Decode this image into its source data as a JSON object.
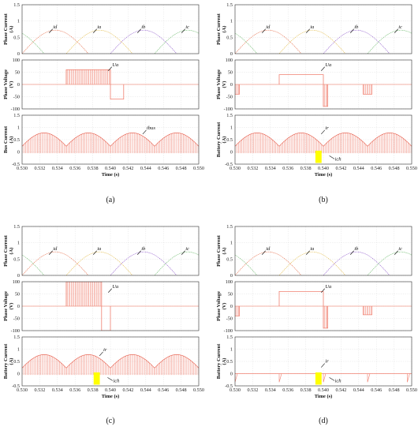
{
  "chart_data": [
    {
      "type": "line",
      "caption": "(a)",
      "xlabel": "Time (s)",
      "xlim": [
        0.53,
        0.55
      ],
      "xticks": [
        "0.530",
        "0.532",
        "0.534",
        "0.536",
        "0.538",
        "0.540",
        "0.542",
        "0.544",
        "0.546",
        "0.548",
        "0.550"
      ],
      "panels": [
        {
          "ylabel": "Phase Current",
          "yunit": "(A)",
          "ylim": [
            0,
            1.5
          ],
          "yticks": [
            "0",
            "0.5",
            "1",
            "1.5"
          ],
          "series": [
            {
              "name": "id",
              "color": "#e87a5a",
              "phase_start": 0.53,
              "period": 0.0075,
              "peak": 0.72
            },
            {
              "name": "ia",
              "color": "#e6c25a",
              "phase_start": 0.535,
              "period": 0.0075,
              "peak": 0.72
            },
            {
              "name": "ib",
              "color": "#9a6ad0",
              "phase_start": 0.54,
              "period": 0.0075,
              "peak": 0.72
            },
            {
              "name": "ic",
              "color": "#7ac07a",
              "phase_start": 0.545,
              "period": 0.0075,
              "peak": 0.72
            }
          ],
          "annotations": [
            {
              "text": "id",
              "x": 0.5335,
              "y": 0.78
            },
            {
              "text": "ia",
              "x": 0.5385,
              "y": 0.78
            },
            {
              "text": "ib",
              "x": 0.5435,
              "y": 0.78
            },
            {
              "text": "ic",
              "x": 0.5485,
              "y": 0.78
            }
          ]
        },
        {
          "ylabel": "Phase Voltage",
          "yunit": "(V)",
          "ylim": [
            -100,
            100
          ],
          "yticks": [
            "-100",
            "-50",
            "0",
            "50",
            "100"
          ],
          "segments": [
            {
              "x0": 0.535,
              "x1": 0.54,
              "level": 60,
              "pwm": true
            },
            {
              "x0": 0.54,
              "x1": 0.5415,
              "level": -60,
              "pwm": false
            }
          ],
          "annotations": [
            {
              "text": "Ua",
              "x": 0.5402,
              "y": 75
            }
          ]
        },
        {
          "ylabel": "Bus Current",
          "yunit": "(A)",
          "ylim": [
            -0.5,
            1.5
          ],
          "yticks": [
            "-0.5",
            "0",
            "0.5",
            "1",
            "1.5"
          ],
          "arches": {
            "period": 0.005,
            "start": 0.53,
            "peak": 0.78,
            "chopped": true
          },
          "annotations": [
            {
              "text": "ibus",
              "x": 0.5441,
              "y": 0.92
            }
          ]
        }
      ]
    },
    {
      "type": "line",
      "caption": "(b)",
      "xlabel": "Time (s)",
      "xlim": [
        0.53,
        0.55
      ],
      "xticks": [
        "0.530",
        "0.532",
        "0.534",
        "0.536",
        "0.538",
        "0.540",
        "0.542",
        "0.544",
        "0.546",
        "0.548",
        "0.550"
      ],
      "panels": [
        {
          "ylabel": "Phase Current",
          "yunit": "(A)",
          "ylim": [
            0,
            1.5
          ],
          "yticks": [
            "0",
            "0.5",
            "1",
            "1.5"
          ],
          "series": [
            {
              "name": "id",
              "color": "#e87a5a",
              "phase_start": 0.53,
              "period": 0.0075,
              "peak": 0.72
            },
            {
              "name": "ia",
              "color": "#e6c25a",
              "phase_start": 0.535,
              "period": 0.0075,
              "peak": 0.72
            },
            {
              "name": "ib",
              "color": "#9a6ad0",
              "phase_start": 0.54,
              "period": 0.0075,
              "peak": 0.72
            },
            {
              "name": "ic",
              "color": "#7ac07a",
              "phase_start": 0.545,
              "period": 0.0075,
              "peak": 0.72
            }
          ],
          "annotations": [
            {
              "text": "id",
              "x": 0.5335,
              "y": 0.78
            },
            {
              "text": "ia",
              "x": 0.5385,
              "y": 0.78
            },
            {
              "text": "ib",
              "x": 0.5435,
              "y": 0.78
            },
            {
              "text": "ic",
              "x": 0.5485,
              "y": 0.78
            }
          ]
        },
        {
          "ylabel": "Phase Voltage",
          "yunit": "(V)",
          "ylim": [
            -100,
            100
          ],
          "yticks": [
            "-100",
            "-50",
            "0",
            "50",
            "100"
          ],
          "segments": [
            {
              "x0": 0.53,
              "x1": 0.5305,
              "level": -40,
              "pwm": true
            },
            {
              "x0": 0.535,
              "x1": 0.54,
              "level": 40,
              "pwm": false
            },
            {
              "x0": 0.54,
              "x1": 0.5405,
              "level": -90,
              "pwm": true
            },
            {
              "x0": 0.5445,
              "x1": 0.5455,
              "level": -40,
              "pwm": true
            }
          ],
          "annotations": [
            {
              "text": "Ua",
              "x": 0.5402,
              "y": 75
            }
          ]
        },
        {
          "ylabel": "Battery Current",
          "yunit": "(A)",
          "ylim": [
            -0.5,
            1.5
          ],
          "yticks": [
            "-0.5",
            "0",
            "0.5",
            "1",
            "1.5"
          ],
          "arches": {
            "period": 0.005,
            "start": 0.53,
            "peak": 0.78,
            "chopped": true
          },
          "highlight": {
            "x0": 0.5391,
            "x1": 0.5398,
            "y0": -0.45,
            "y1": 0.05,
            "color": "#ffff00"
          },
          "annotations": [
            {
              "text": "ir",
              "x": 0.5402,
              "y": 0.92
            },
            {
              "text": "ich",
              "x": 0.5413,
              "y": -0.35
            }
          ]
        }
      ]
    },
    {
      "type": "line",
      "caption": "(c)",
      "xlabel": "Time (s)",
      "xlim": [
        0.53,
        0.55
      ],
      "xticks": [
        "0.530",
        "0.532",
        "0.534",
        "0.536",
        "0.538",
        "0.540",
        "0.542",
        "0.544",
        "0.546",
        "0.548",
        "0.550"
      ],
      "panels": [
        {
          "ylabel": "Phase Current",
          "yunit": "(A)",
          "ylim": [
            0,
            1.5
          ],
          "yticks": [
            "0",
            "0.5",
            "1",
            "1.5"
          ],
          "series": [
            {
              "name": "id",
              "color": "#e87a5a",
              "phase_start": 0.53,
              "period": 0.0075,
              "peak": 0.72
            },
            {
              "name": "ia",
              "color": "#e6c25a",
              "phase_start": 0.535,
              "period": 0.0075,
              "peak": 0.72
            },
            {
              "name": "ib",
              "color": "#9a6ad0",
              "phase_start": 0.54,
              "period": 0.0075,
              "peak": 0.72
            },
            {
              "name": "ic",
              "color": "#7ac07a",
              "phase_start": 0.545,
              "period": 0.0075,
              "peak": 0.72
            }
          ],
          "annotations": [
            {
              "text": "id",
              "x": 0.5335,
              "y": 0.78
            },
            {
              "text": "ia",
              "x": 0.5385,
              "y": 0.78
            },
            {
              "text": "ib",
              "x": 0.5435,
              "y": 0.78
            },
            {
              "text": "ic",
              "x": 0.5485,
              "y": 0.78
            }
          ]
        },
        {
          "ylabel": "Phase Voltage",
          "yunit": "(V)",
          "ylim": [
            -100,
            100
          ],
          "yticks": [
            "-100",
            "-50",
            "0",
            "50",
            "100"
          ],
          "segments": [
            {
              "x0": 0.535,
              "x1": 0.539,
              "level": 100,
              "pwm": true
            },
            {
              "x0": 0.539,
              "x1": 0.54,
              "level": -100,
              "pwm": false
            }
          ],
          "annotations": [
            {
              "text": "Ua",
              "x": 0.5402,
              "y": 75
            }
          ]
        },
        {
          "ylabel": "Battery Current",
          "yunit": "(A)",
          "ylim": [
            -0.5,
            1.5
          ],
          "yticks": [
            "-0.5",
            "0",
            "0.5",
            "1",
            "1.5"
          ],
          "arches": {
            "period": 0.005,
            "start": 0.53,
            "peak": 0.78,
            "chopped": true
          },
          "highlight": {
            "x0": 0.5381,
            "x1": 0.5388,
            "y0": -0.45,
            "y1": 0.05,
            "color": "#ffff00"
          },
          "annotations": [
            {
              "text": "ir",
              "x": 0.5392,
              "y": 0.92
            },
            {
              "text": "ich",
              "x": 0.5403,
              "y": -0.35
            }
          ]
        }
      ]
    },
    {
      "type": "line",
      "caption": "(d)",
      "xlabel": "Time (s)",
      "xlim": [
        0.53,
        0.55
      ],
      "xticks": [
        "0.530",
        "0.532",
        "0.534",
        "0.536",
        "0.538",
        "0.540",
        "0.542",
        "0.544",
        "0.546",
        "0.548",
        "0.550"
      ],
      "panels": [
        {
          "ylabel": "Phase Current",
          "yunit": "(A)",
          "ylim": [
            0,
            1.5
          ],
          "yticks": [
            "0",
            "0.5",
            "1",
            "1.5"
          ],
          "series": [
            {
              "name": "id",
              "color": "#e87a5a",
              "phase_start": 0.53,
              "period": 0.0075,
              "peak": 0.72
            },
            {
              "name": "ia",
              "color": "#e6c25a",
              "phase_start": 0.535,
              "period": 0.0075,
              "peak": 0.72
            },
            {
              "name": "ib",
              "color": "#9a6ad0",
              "phase_start": 0.54,
              "period": 0.0075,
              "peak": 0.72
            },
            {
              "name": "ic",
              "color": "#7ac07a",
              "phase_start": 0.545,
              "period": 0.0075,
              "peak": 0.72
            }
          ],
          "annotations": [
            {
              "text": "id",
              "x": 0.5335,
              "y": 0.78
            },
            {
              "text": "ia",
              "x": 0.5385,
              "y": 0.78
            },
            {
              "text": "ib",
              "x": 0.5435,
              "y": 0.78
            },
            {
              "text": "ic",
              "x": 0.5485,
              "y": 0.78
            }
          ]
        },
        {
          "ylabel": "Phase Voltage",
          "yunit": "(V)",
          "ylim": [
            -100,
            100
          ],
          "yticks": [
            "-100",
            "-50",
            "0",
            "50",
            "100"
          ],
          "segments": [
            {
              "x0": 0.53,
              "x1": 0.5305,
              "level": -40,
              "pwm": true
            },
            {
              "x0": 0.535,
              "x1": 0.54,
              "level": 60,
              "pwm": false
            },
            {
              "x0": 0.54,
              "x1": 0.5405,
              "level": -90,
              "pwm": true
            },
            {
              "x0": 0.5445,
              "x1": 0.5455,
              "level": -35,
              "pwm": true
            }
          ],
          "annotations": [
            {
              "text": "Ua",
              "x": 0.5402,
              "y": 75
            }
          ]
        },
        {
          "ylabel": "Battery Current",
          "yunit": "(A)",
          "ylim": [
            -0.5,
            1.5
          ],
          "yticks": [
            "-0.5",
            "0",
            "0.5",
            "1",
            "1.5"
          ],
          "arches": {
            "period": 0.005,
            "start": 0.53,
            "peak": 0.0,
            "chopped": false,
            "spikes": true
          },
          "highlight": {
            "x0": 0.5391,
            "x1": 0.5398,
            "y0": -0.45,
            "y1": 0.05,
            "color": "#ffff00"
          },
          "annotations": [
            {
              "text": "ir",
              "x": 0.5402,
              "y": 0.45
            },
            {
              "text": "ich",
              "x": 0.5413,
              "y": -0.35
            }
          ]
        }
      ]
    }
  ]
}
